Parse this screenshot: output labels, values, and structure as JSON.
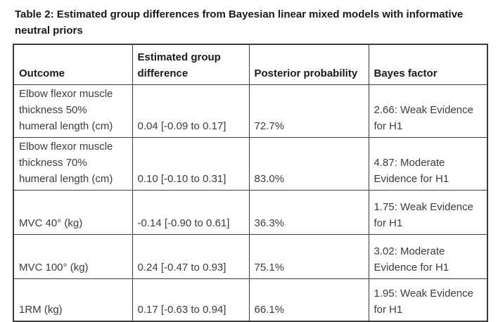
{
  "caption": "Table 2: Estimated group differences from Bayesian linear mixed models with informative neutral priors",
  "table": {
    "columns": [
      "Outcome",
      "Estimated group difference",
      "Posterior probability",
      "Bayes factor"
    ],
    "rows": [
      {
        "outcome": "Elbow flexor muscle thickness 50% humeral length (cm)",
        "estimate": "0.04 [-0.09 to 0.17]",
        "posterior": "72.7%",
        "bayes": "2.66: Weak Evidence for H1"
      },
      {
        "outcome": "Elbow flexor muscle thickness 70% humeral length (cm)",
        "estimate": "0.10 [-0.10 to 0.31]",
        "posterior": "83.0%",
        "bayes": "4.87: Moderate Evidence for H1"
      },
      {
        "outcome": "MVC 40° (kg)",
        "estimate": "-0.14 [-0.90 to 0.61]",
        "posterior": "36.3%",
        "bayes": "1.75: Weak Evidence for H1"
      },
      {
        "outcome": "MVC 100° (kg)",
        "estimate": "0.24 [-0.47 to 0.93]",
        "posterior": "75.1%",
        "bayes": "3.02: Moderate Evidence for H1"
      },
      {
        "outcome": "1RM (kg)",
        "estimate": "0.17 [-0.63 to 0.94]",
        "posterior": "66.1%",
        "bayes": "1.95: Weak Evidence for H1"
      }
    ]
  },
  "colors": {
    "caption_text": "#1a1a1a",
    "body_text": "#3c3c3c",
    "border": "#3d3d3d",
    "background": "#ffffff"
  }
}
